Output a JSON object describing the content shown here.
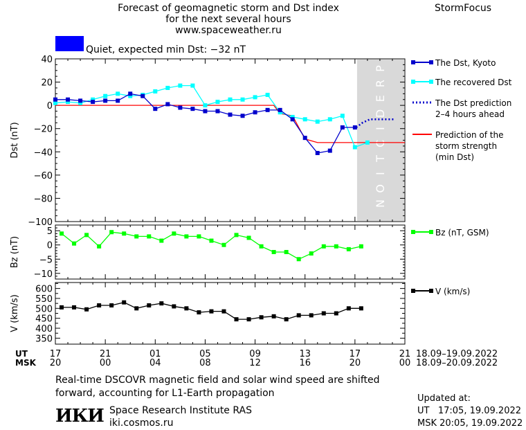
{
  "header": {
    "title_lines": [
      "Forecast of geomagnetic storm and Dst index",
      "for the next several hours",
      "www.spaceweather.ru"
    ],
    "brand": "StormFocus"
  },
  "status": {
    "text": "Quiet, expected min Dst: −32 nT",
    "color": "#0000ff"
  },
  "colors": {
    "dst_kyoto": "#0000cc",
    "dst_recovered": "#00ffff",
    "dst_prediction": "#0000cc",
    "storm_strength": "#ff0000",
    "bz": "#00ff00",
    "v": "#000000",
    "prediction_band": "#d9d9d9"
  },
  "chart_data": [
    {
      "type": "line",
      "id": "dst",
      "ylabel": "Dst (nT)",
      "ylim": [
        -100,
        40
      ],
      "yticks": [
        40,
        20,
        0,
        -20,
        -40,
        -60,
        -80,
        -100
      ],
      "xlim": [
        17,
        45
      ],
      "prediction_band": {
        "from": 41.17,
        "to": 45,
        "label": "PREDICTION"
      },
      "series": [
        {
          "name": "The Dst, Kyoto",
          "style": "line-square",
          "x": [
            17,
            18,
            19,
            20,
            21,
            22,
            23,
            24,
            25,
            26,
            27,
            28,
            29,
            30,
            31,
            32,
            33,
            34,
            35,
            36,
            37,
            38,
            39,
            40,
            41
          ],
          "y": [
            5,
            5,
            4,
            3,
            4,
            4,
            10,
            8,
            -3,
            1,
            -2,
            -3,
            -5,
            -5,
            -8,
            -9,
            -6,
            -4,
            -4,
            -12,
            -28,
            -41,
            -39,
            -19,
            -19
          ]
        },
        {
          "name": "The recovered Dst",
          "style": "line-square",
          "x": [
            17,
            18,
            19,
            20,
            21,
            22,
            23,
            24,
            25,
            26,
            27,
            28,
            29,
            30,
            31,
            32,
            33,
            34,
            35,
            36,
            37,
            38,
            39,
            40,
            41,
            42
          ],
          "y": [
            2,
            3,
            2,
            5,
            8,
            10,
            8,
            9,
            12,
            15,
            17,
            17,
            0,
            3,
            5,
            5,
            7,
            9,
            -6,
            -10,
            -12,
            -14,
            -12,
            -9,
            -36,
            -32
          ]
        },
        {
          "name": "The Dst prediction\n2–4 hours ahead",
          "style": "dotted",
          "x": [
            41.1,
            41.6,
            42.2,
            43,
            44.2
          ],
          "y": [
            -19,
            -15,
            -12,
            -12,
            -12
          ]
        },
        {
          "name": "Prediction of the\nstorm strength\n(min Dst)",
          "style": "line",
          "x": [
            17,
            34.5,
            35,
            36,
            37,
            38,
            45
          ],
          "y": [
            0,
            0,
            -7,
            -9,
            -29,
            -32,
            -32
          ]
        }
      ]
    },
    {
      "type": "line",
      "id": "bz",
      "ylabel": "Bz (nT)",
      "ylim": [
        -12,
        7
      ],
      "yticks": [
        5,
        0,
        -5,
        -10
      ],
      "xlim": [
        17,
        45
      ],
      "series": [
        {
          "name": "Bz (nT, GSM)",
          "x": [
            17.5,
            18.5,
            19.5,
            20.5,
            21.5,
            22.5,
            23.5,
            24.5,
            25.5,
            26.5,
            27.5,
            28.5,
            29.5,
            30.5,
            31.5,
            32.5,
            33.5,
            34.5,
            35.5,
            36.5,
            37.5,
            38.5,
            39.5,
            40.5,
            41.5
          ],
          "y": [
            4,
            0.5,
            3.5,
            -0.5,
            4.5,
            4,
            3,
            3,
            1.5,
            4,
            3,
            3,
            1.5,
            0,
            3.5,
            2.5,
            -0.5,
            -2.5,
            -2.5,
            -5,
            -3,
            -0.5,
            -0.5,
            -1.5,
            -0.5
          ]
        }
      ]
    },
    {
      "type": "line",
      "id": "v",
      "ylabel": "V (km/s)",
      "ylim": [
        320,
        630
      ],
      "yticks": [
        600,
        550,
        500,
        450,
        400,
        350
      ],
      "yminorticks": [
        625,
        575,
        525,
        475,
        425,
        375
      ],
      "xlim": [
        17,
        45
      ],
      "series": [
        {
          "name": "V (km/s)",
          "x": [
            17.5,
            18.5,
            19.5,
            20.5,
            21.5,
            22.5,
            23.5,
            24.5,
            25.5,
            26.5,
            27.5,
            28.5,
            29.5,
            30.5,
            31.5,
            32.5,
            33.5,
            34.5,
            35.5,
            36.5,
            37.5,
            38.5,
            39.5,
            40.5,
            41.5
          ],
          "y": [
            505,
            505,
            495,
            515,
            515,
            530,
            500,
            515,
            525,
            510,
            500,
            480,
            485,
            485,
            445,
            445,
            455,
            460,
            445,
            465,
            465,
            475,
            475,
            500,
            500
          ]
        }
      ]
    }
  ],
  "x_axis": {
    "ticks": [
      17,
      21,
      25,
      29,
      33,
      37,
      41,
      45
    ],
    "ut_prefix": "UT",
    "msk_prefix": "MSK",
    "ut_labels": [
      "17",
      "21",
      "01",
      "05",
      "09",
      "13",
      "17",
      "21"
    ],
    "msk_labels": [
      "20",
      "00",
      "04",
      "08",
      "12",
      "16",
      "20",
      "00"
    ],
    "ut_range": "18.09–19.09.2022",
    "msk_range": "18.09–20.09.2022"
  },
  "footer": {
    "note": "Real-time DSCOVR magnetic field and solar wind speed are shifted forward, accounting for L1-Earth propagation",
    "logo_text": "ИКИ",
    "institute": "Space Research Institute RAS",
    "website": "iki.cosmos.ru",
    "updated_label": "Updated at:",
    "updated_ut": "UT   17:05, 19.09.2022",
    "updated_msk": "MSK 20:05, 19.09.2022"
  }
}
